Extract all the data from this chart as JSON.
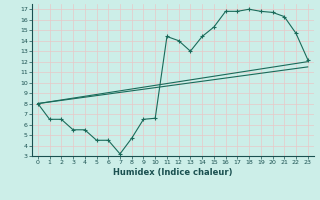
{
  "xlabel": "Humidex (Indice chaleur)",
  "background_color": "#cceee8",
  "grid_color": "#e8c8c8",
  "line_color": "#1a6b5a",
  "xlim": [
    -0.5,
    23.5
  ],
  "ylim": [
    3,
    17.5
  ],
  "xticks": [
    0,
    1,
    2,
    3,
    4,
    5,
    6,
    7,
    8,
    9,
    10,
    11,
    12,
    13,
    14,
    15,
    16,
    17,
    18,
    19,
    20,
    21,
    22,
    23
  ],
  "yticks": [
    3,
    4,
    5,
    6,
    7,
    8,
    9,
    10,
    11,
    12,
    13,
    14,
    15,
    16,
    17
  ],
  "curve1_x": [
    0,
    1,
    2,
    3,
    4,
    5,
    6,
    7,
    8,
    9,
    10,
    11,
    12,
    13,
    14,
    15,
    16,
    17,
    18,
    19,
    20,
    21,
    22,
    23
  ],
  "curve1_y": [
    8.0,
    6.5,
    6.5,
    5.5,
    5.5,
    4.5,
    4.5,
    3.2,
    4.7,
    6.5,
    6.6,
    14.4,
    14.0,
    13.0,
    14.4,
    15.3,
    16.8,
    16.8,
    17.0,
    16.8,
    16.7,
    16.3,
    14.7,
    12.2
  ],
  "curve2_x": [
    0,
    23
  ],
  "curve2_y": [
    8.0,
    12.0
  ],
  "curve3_x": [
    0,
    23
  ],
  "curve3_y": [
    8.0,
    11.5
  ]
}
